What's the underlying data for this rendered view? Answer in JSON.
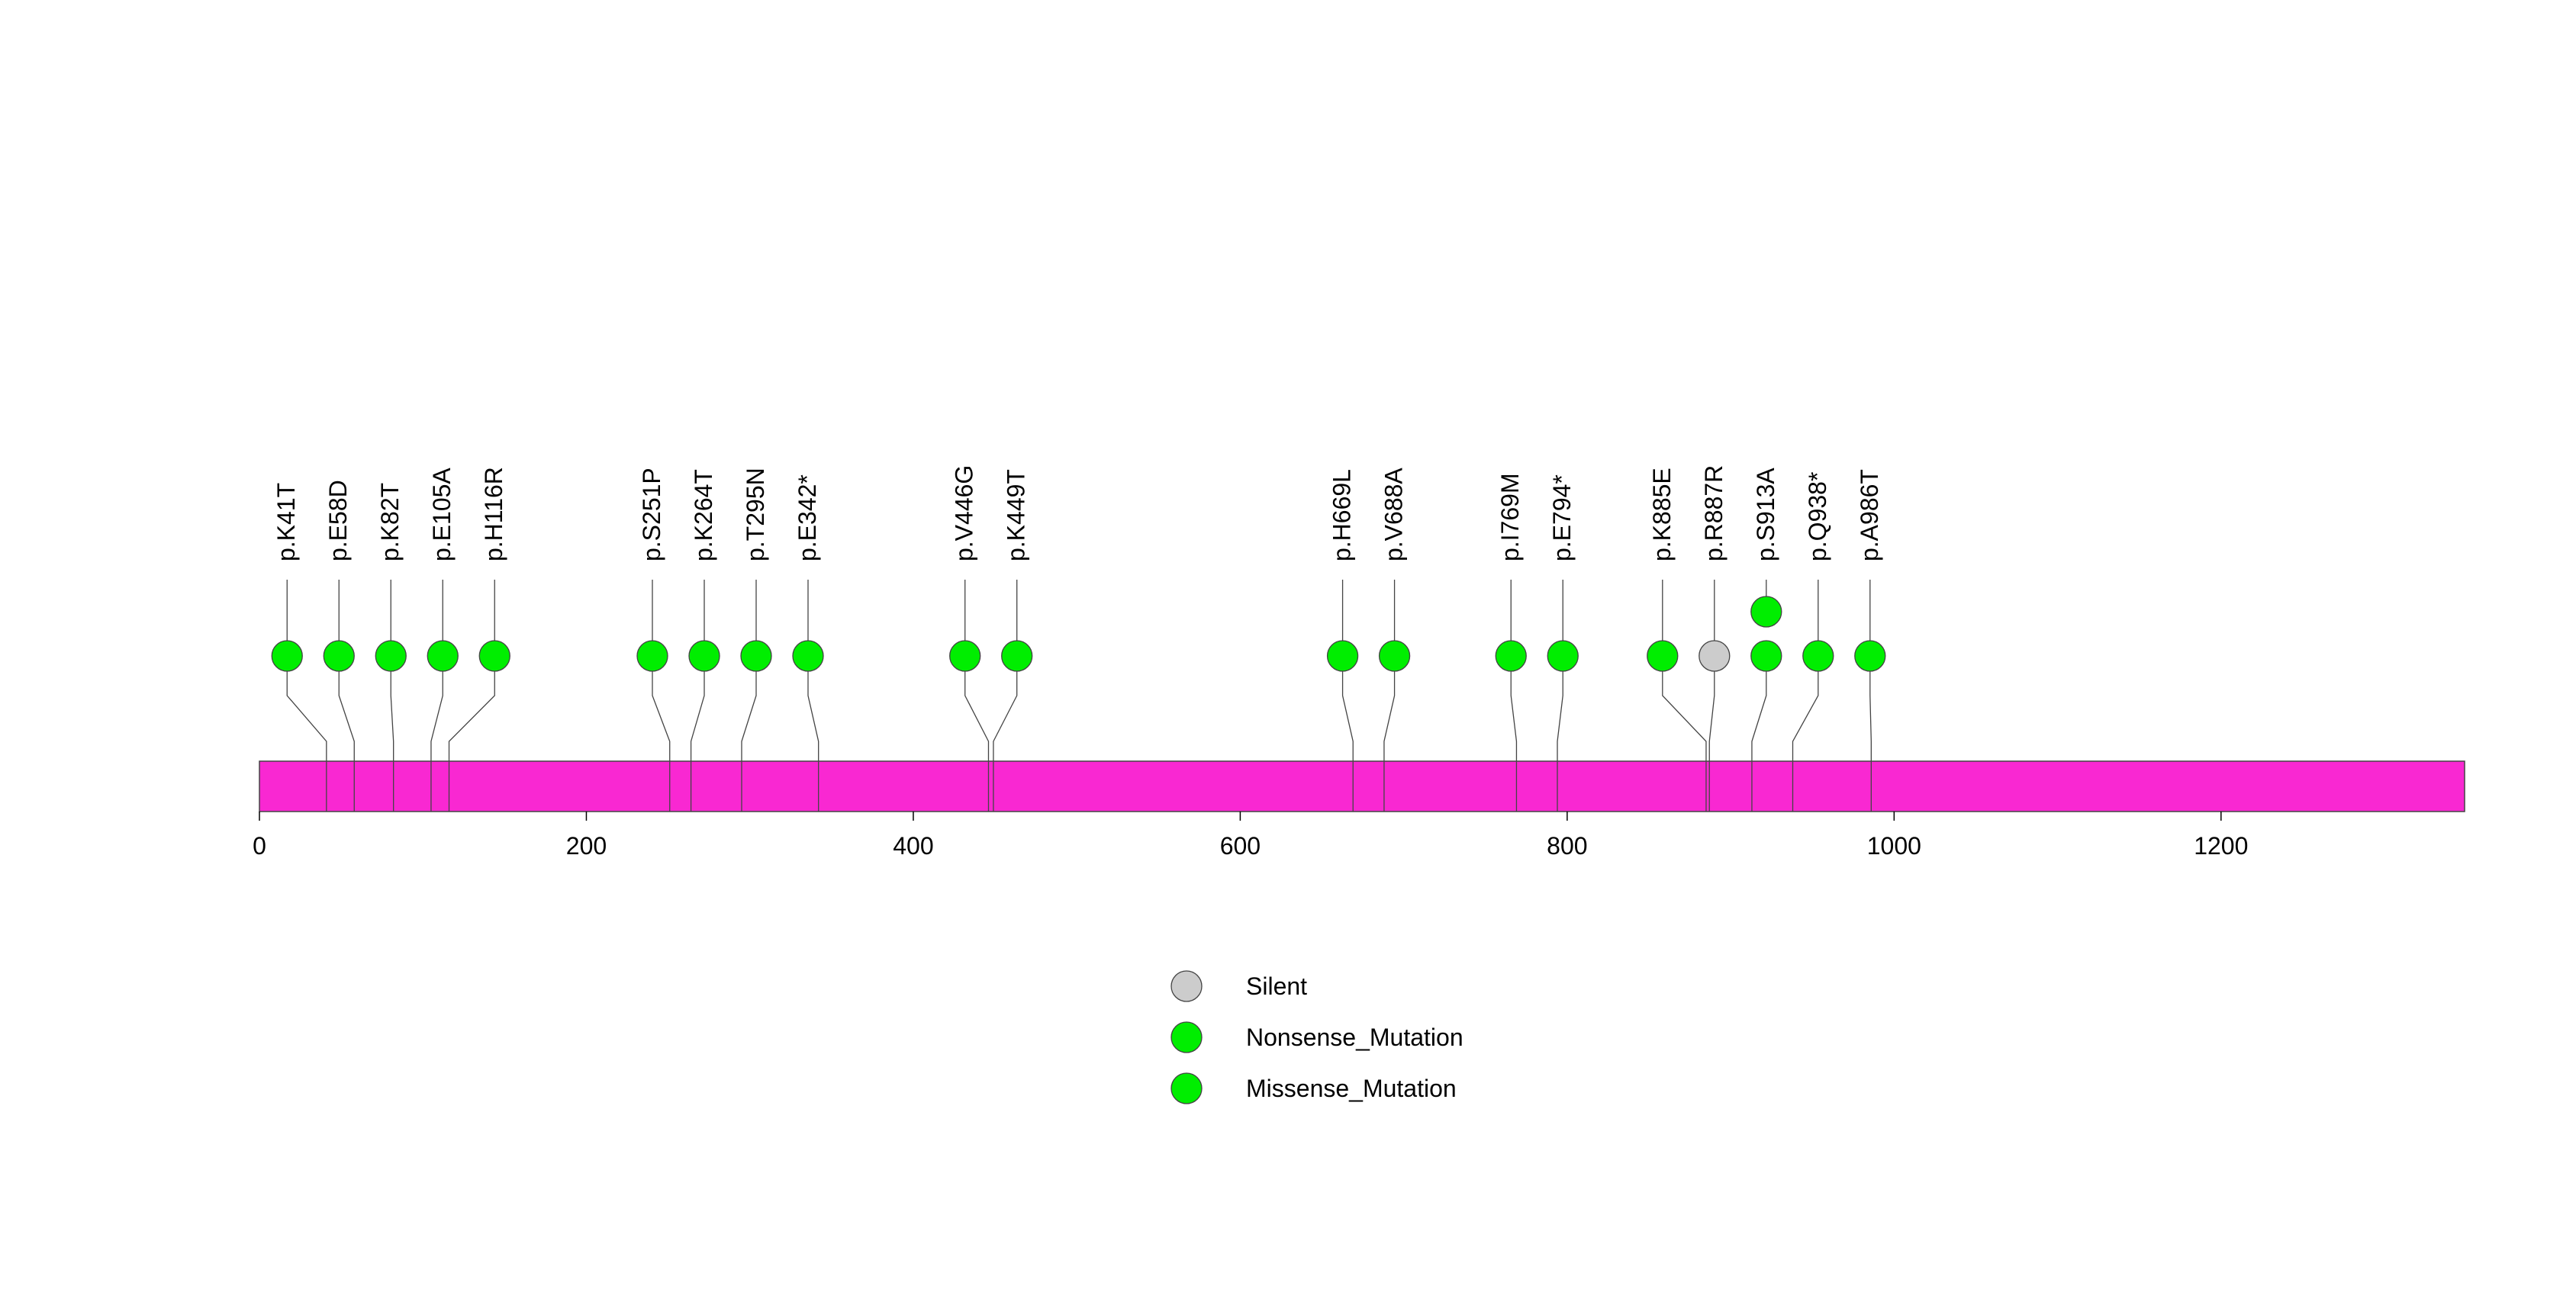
{
  "chart_data": {
    "type": "lollipop",
    "protein_length": 1349,
    "xlim": [
      0,
      1349
    ],
    "ticks": [
      0,
      200,
      400,
      600,
      800,
      1000,
      1200
    ],
    "colors": {
      "protein_bar": "#f928d2",
      "Silent": "#cccccc",
      "Nonsense_Mutation": "#00ee00",
      "Missense_Mutation": "#00ee00",
      "stroke": "#444444"
    },
    "mutations": [
      {
        "label": "p.K41T",
        "position": 41,
        "type": "Missense_Mutation",
        "count": 1
      },
      {
        "label": "p.E58D",
        "position": 58,
        "type": "Missense_Mutation",
        "count": 1
      },
      {
        "label": "p.K82T",
        "position": 82,
        "type": "Missense_Mutation",
        "count": 1
      },
      {
        "label": "p.E105A",
        "position": 105,
        "type": "Missense_Mutation",
        "count": 1
      },
      {
        "label": "p.H116R",
        "position": 116,
        "type": "Missense_Mutation",
        "count": 1
      },
      {
        "label": "p.S251P",
        "position": 251,
        "type": "Missense_Mutation",
        "count": 1
      },
      {
        "label": "p.K264T",
        "position": 264,
        "type": "Missense_Mutation",
        "count": 1
      },
      {
        "label": "p.T295N",
        "position": 295,
        "type": "Missense_Mutation",
        "count": 1
      },
      {
        "label": "p.E342*",
        "position": 342,
        "type": "Nonsense_Mutation",
        "count": 1
      },
      {
        "label": "p.V446G",
        "position": 446,
        "type": "Missense_Mutation",
        "count": 1
      },
      {
        "label": "p.K449T",
        "position": 449,
        "type": "Missense_Mutation",
        "count": 1
      },
      {
        "label": "p.H669L",
        "position": 669,
        "type": "Missense_Mutation",
        "count": 1
      },
      {
        "label": "p.V688A",
        "position": 688,
        "type": "Missense_Mutation",
        "count": 1
      },
      {
        "label": "p.I769M",
        "position": 769,
        "type": "Missense_Mutation",
        "count": 1
      },
      {
        "label": "p.E794*",
        "position": 794,
        "type": "Nonsense_Mutation",
        "count": 1
      },
      {
        "label": "p.K885E",
        "position": 885,
        "type": "Missense_Mutation",
        "count": 1
      },
      {
        "label": "p.R887R",
        "position": 887,
        "type": "Silent",
        "count": 1
      },
      {
        "label": "p.S913A",
        "position": 913,
        "type": "Missense_Mutation",
        "count": 2
      },
      {
        "label": "p.Q938*",
        "position": 938,
        "type": "Nonsense_Mutation",
        "count": 1
      },
      {
        "label": "p.A986T",
        "position": 986,
        "type": "Missense_Mutation",
        "count": 1
      }
    ],
    "legend": [
      {
        "label": "Silent",
        "type": "Silent"
      },
      {
        "label": "Nonsense_Mutation",
        "type": "Nonsense_Mutation"
      },
      {
        "label": "Missense_Mutation",
        "type": "Missense_Mutation"
      }
    ]
  }
}
